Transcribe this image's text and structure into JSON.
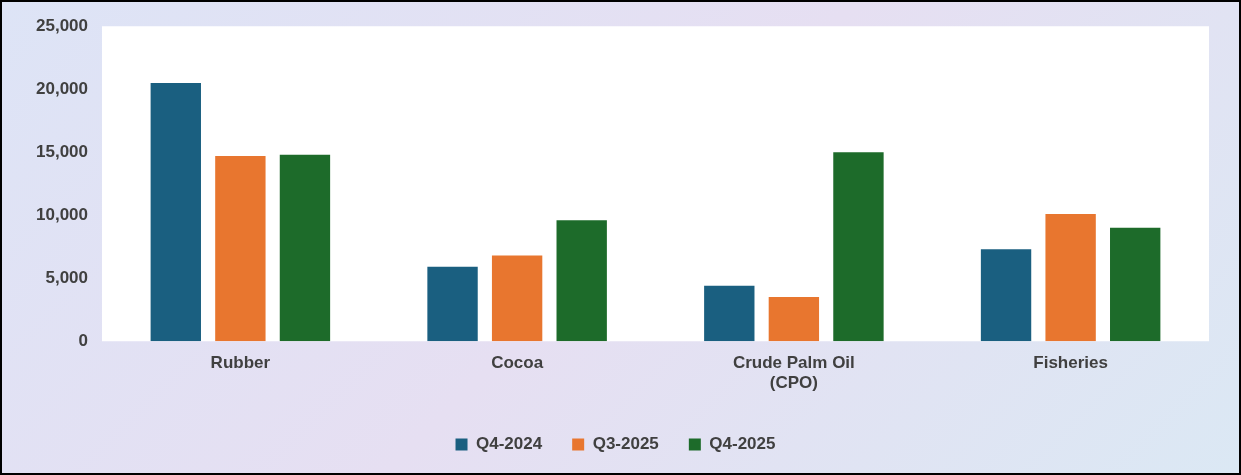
{
  "chart_data": {
    "type": "bar",
    "categories": [
      "Rubber",
      "Cocoa",
      "Crude Palm Oil (CPO)",
      "Fisheries"
    ],
    "series": [
      {
        "name": "Q4-2024",
        "color": "#1a5f80",
        "values": [
          20500,
          5900,
          4400,
          7300
        ]
      },
      {
        "name": "Q3-2025",
        "color": "#e8762f",
        "values": [
          14700,
          6800,
          3500,
          10100
        ]
      },
      {
        "name": "Q4-2025",
        "color": "#1d6b2a",
        "values": [
          14800,
          9600,
          15000,
          9000
        ]
      }
    ],
    "ylim": [
      0,
      25000
    ],
    "yticks": [
      {
        "value": 0,
        "label": "0"
      },
      {
        "value": 5000,
        "label": "5,000"
      },
      {
        "value": 10000,
        "label": "10,000"
      },
      {
        "value": 15000,
        "label": "15,000"
      },
      {
        "value": 20000,
        "label": "20,000"
      },
      {
        "value": 25000,
        "label": "25,000"
      }
    ],
    "grid": false,
    "legend": "bottom"
  }
}
